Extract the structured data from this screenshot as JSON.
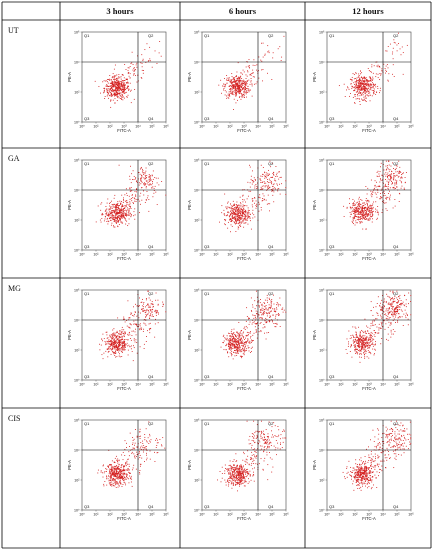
{
  "figure": {
    "time_headers": [
      "3 hours",
      "6 hours",
      "12 hours"
    ],
    "treatments": [
      "UT",
      "GA",
      "MG",
      "CIS"
    ]
  },
  "plot_labels": {
    "xlabel": "FITC-A",
    "ylabel": "PE-A",
    "quadrants": [
      "Q1",
      "Q2",
      "Q3",
      "Q4"
    ],
    "x_ticks": [
      "10⁰",
      "10¹",
      "10²",
      "10³",
      "10⁴",
      "10⁵",
      "10⁶"
    ],
    "y_ticks": [
      "10⁰",
      "10²",
      "10⁴",
      "10⁶"
    ]
  },
  "colors": {
    "dots": "#d42020",
    "grid": "#000000",
    "axes": "#444444",
    "text": "#111111"
  },
  "chart_data": {
    "type": "scatter",
    "xlabel": "FITC-A",
    "ylabel": "PE-A",
    "xscale": "log",
    "yscale": "log",
    "xlim": [
      1,
      1000000
    ],
    "ylim": [
      1,
      1000000
    ],
    "quadrant_gate": {
      "x": 10000,
      "y": 10000
    },
    "panels": [
      {
        "treatment": "UT",
        "time": "3 hours",
        "clusters": [
          {
            "center": [
              300,
              200
            ],
            "spread": 0.45,
            "count": 420
          },
          {
            "center": [
              6000,
              2500
            ],
            "spread": 0.5,
            "count": 50
          },
          {
            "center": [
              60000,
              60000
            ],
            "spread": 0.55,
            "count": 15
          }
        ]
      },
      {
        "treatment": "UT",
        "time": "6 hours",
        "clusters": [
          {
            "center": [
              300,
              250
            ],
            "spread": 0.45,
            "count": 380
          },
          {
            "center": [
              5000,
              2000
            ],
            "spread": 0.55,
            "count": 40
          },
          {
            "center": [
              80000,
              60000
            ],
            "spread": 0.55,
            "count": 18
          }
        ]
      },
      {
        "treatment": "UT",
        "time": "12 hours",
        "clusters": [
          {
            "center": [
              350,
              250
            ],
            "spread": 0.45,
            "count": 360
          },
          {
            "center": [
              6000,
              2500
            ],
            "spread": 0.55,
            "count": 45
          },
          {
            "center": [
              80000,
              80000
            ],
            "spread": 0.55,
            "count": 18
          }
        ]
      },
      {
        "treatment": "GA",
        "time": "3 hours",
        "clusters": [
          {
            "center": [
              300,
              300
            ],
            "spread": 0.45,
            "count": 360
          },
          {
            "center": [
              30000,
              50000
            ],
            "spread": 0.55,
            "count": 120
          },
          {
            "center": [
              5000,
              3000
            ],
            "spread": 0.6,
            "count": 60
          }
        ]
      },
      {
        "treatment": "GA",
        "time": "6 hours",
        "clusters": [
          {
            "center": [
              300,
              250
            ],
            "spread": 0.45,
            "count": 340
          },
          {
            "center": [
              40000,
              40000
            ],
            "spread": 0.6,
            "count": 130
          },
          {
            "center": [
              6000,
              3000
            ],
            "spread": 0.6,
            "count": 60
          }
        ]
      },
      {
        "treatment": "GA",
        "time": "12 hours",
        "clusters": [
          {
            "center": [
              300,
              400
            ],
            "spread": 0.45,
            "count": 330
          },
          {
            "center": [
              40000,
              60000
            ],
            "spread": 0.6,
            "count": 160
          },
          {
            "center": [
              6000,
              4000
            ],
            "spread": 0.6,
            "count": 70
          }
        ]
      },
      {
        "treatment": "MG",
        "time": "3 hours",
        "clusters": [
          {
            "center": [
              300,
              300
            ],
            "spread": 0.45,
            "count": 360
          },
          {
            "center": [
              40000,
              50000
            ],
            "spread": 0.6,
            "count": 120
          },
          {
            "center": [
              6000,
              3000
            ],
            "spread": 0.6,
            "count": 70
          }
        ]
      },
      {
        "treatment": "MG",
        "time": "6 hours",
        "clusters": [
          {
            "center": [
              300,
              300
            ],
            "spread": 0.45,
            "count": 340
          },
          {
            "center": [
              40000,
              50000
            ],
            "spread": 0.6,
            "count": 150
          },
          {
            "center": [
              6000,
              4000
            ],
            "spread": 0.6,
            "count": 70
          }
        ]
      },
      {
        "treatment": "MG",
        "time": "12 hours",
        "clusters": [
          {
            "center": [
              300,
              300
            ],
            "spread": 0.45,
            "count": 320
          },
          {
            "center": [
              60000,
              70000
            ],
            "spread": 0.55,
            "count": 200
          },
          {
            "center": [
              6000,
              5000
            ],
            "spread": 0.6,
            "count": 80
          }
        ]
      },
      {
        "treatment": "CIS",
        "time": "3 hours",
        "clusters": [
          {
            "center": [
              300,
              250
            ],
            "spread": 0.45,
            "count": 380
          },
          {
            "center": [
              30000,
              30000
            ],
            "spread": 0.65,
            "count": 80
          },
          {
            "center": [
              5000,
              2500
            ],
            "spread": 0.6,
            "count": 50
          }
        ]
      },
      {
        "treatment": "CIS",
        "time": "6 hours",
        "clusters": [
          {
            "center": [
              300,
              250
            ],
            "spread": 0.45,
            "count": 360
          },
          {
            "center": [
              40000,
              50000
            ],
            "spread": 0.6,
            "count": 130
          },
          {
            "center": [
              6000,
              3000
            ],
            "spread": 0.6,
            "count": 60
          }
        ]
      },
      {
        "treatment": "CIS",
        "time": "12 hours",
        "clusters": [
          {
            "center": [
              300,
              250
            ],
            "spread": 0.45,
            "count": 350
          },
          {
            "center": [
              50000,
              60000
            ],
            "spread": 0.6,
            "count": 150
          },
          {
            "center": [
              6000,
              3500
            ],
            "spread": 0.6,
            "count": 70
          }
        ]
      }
    ]
  }
}
